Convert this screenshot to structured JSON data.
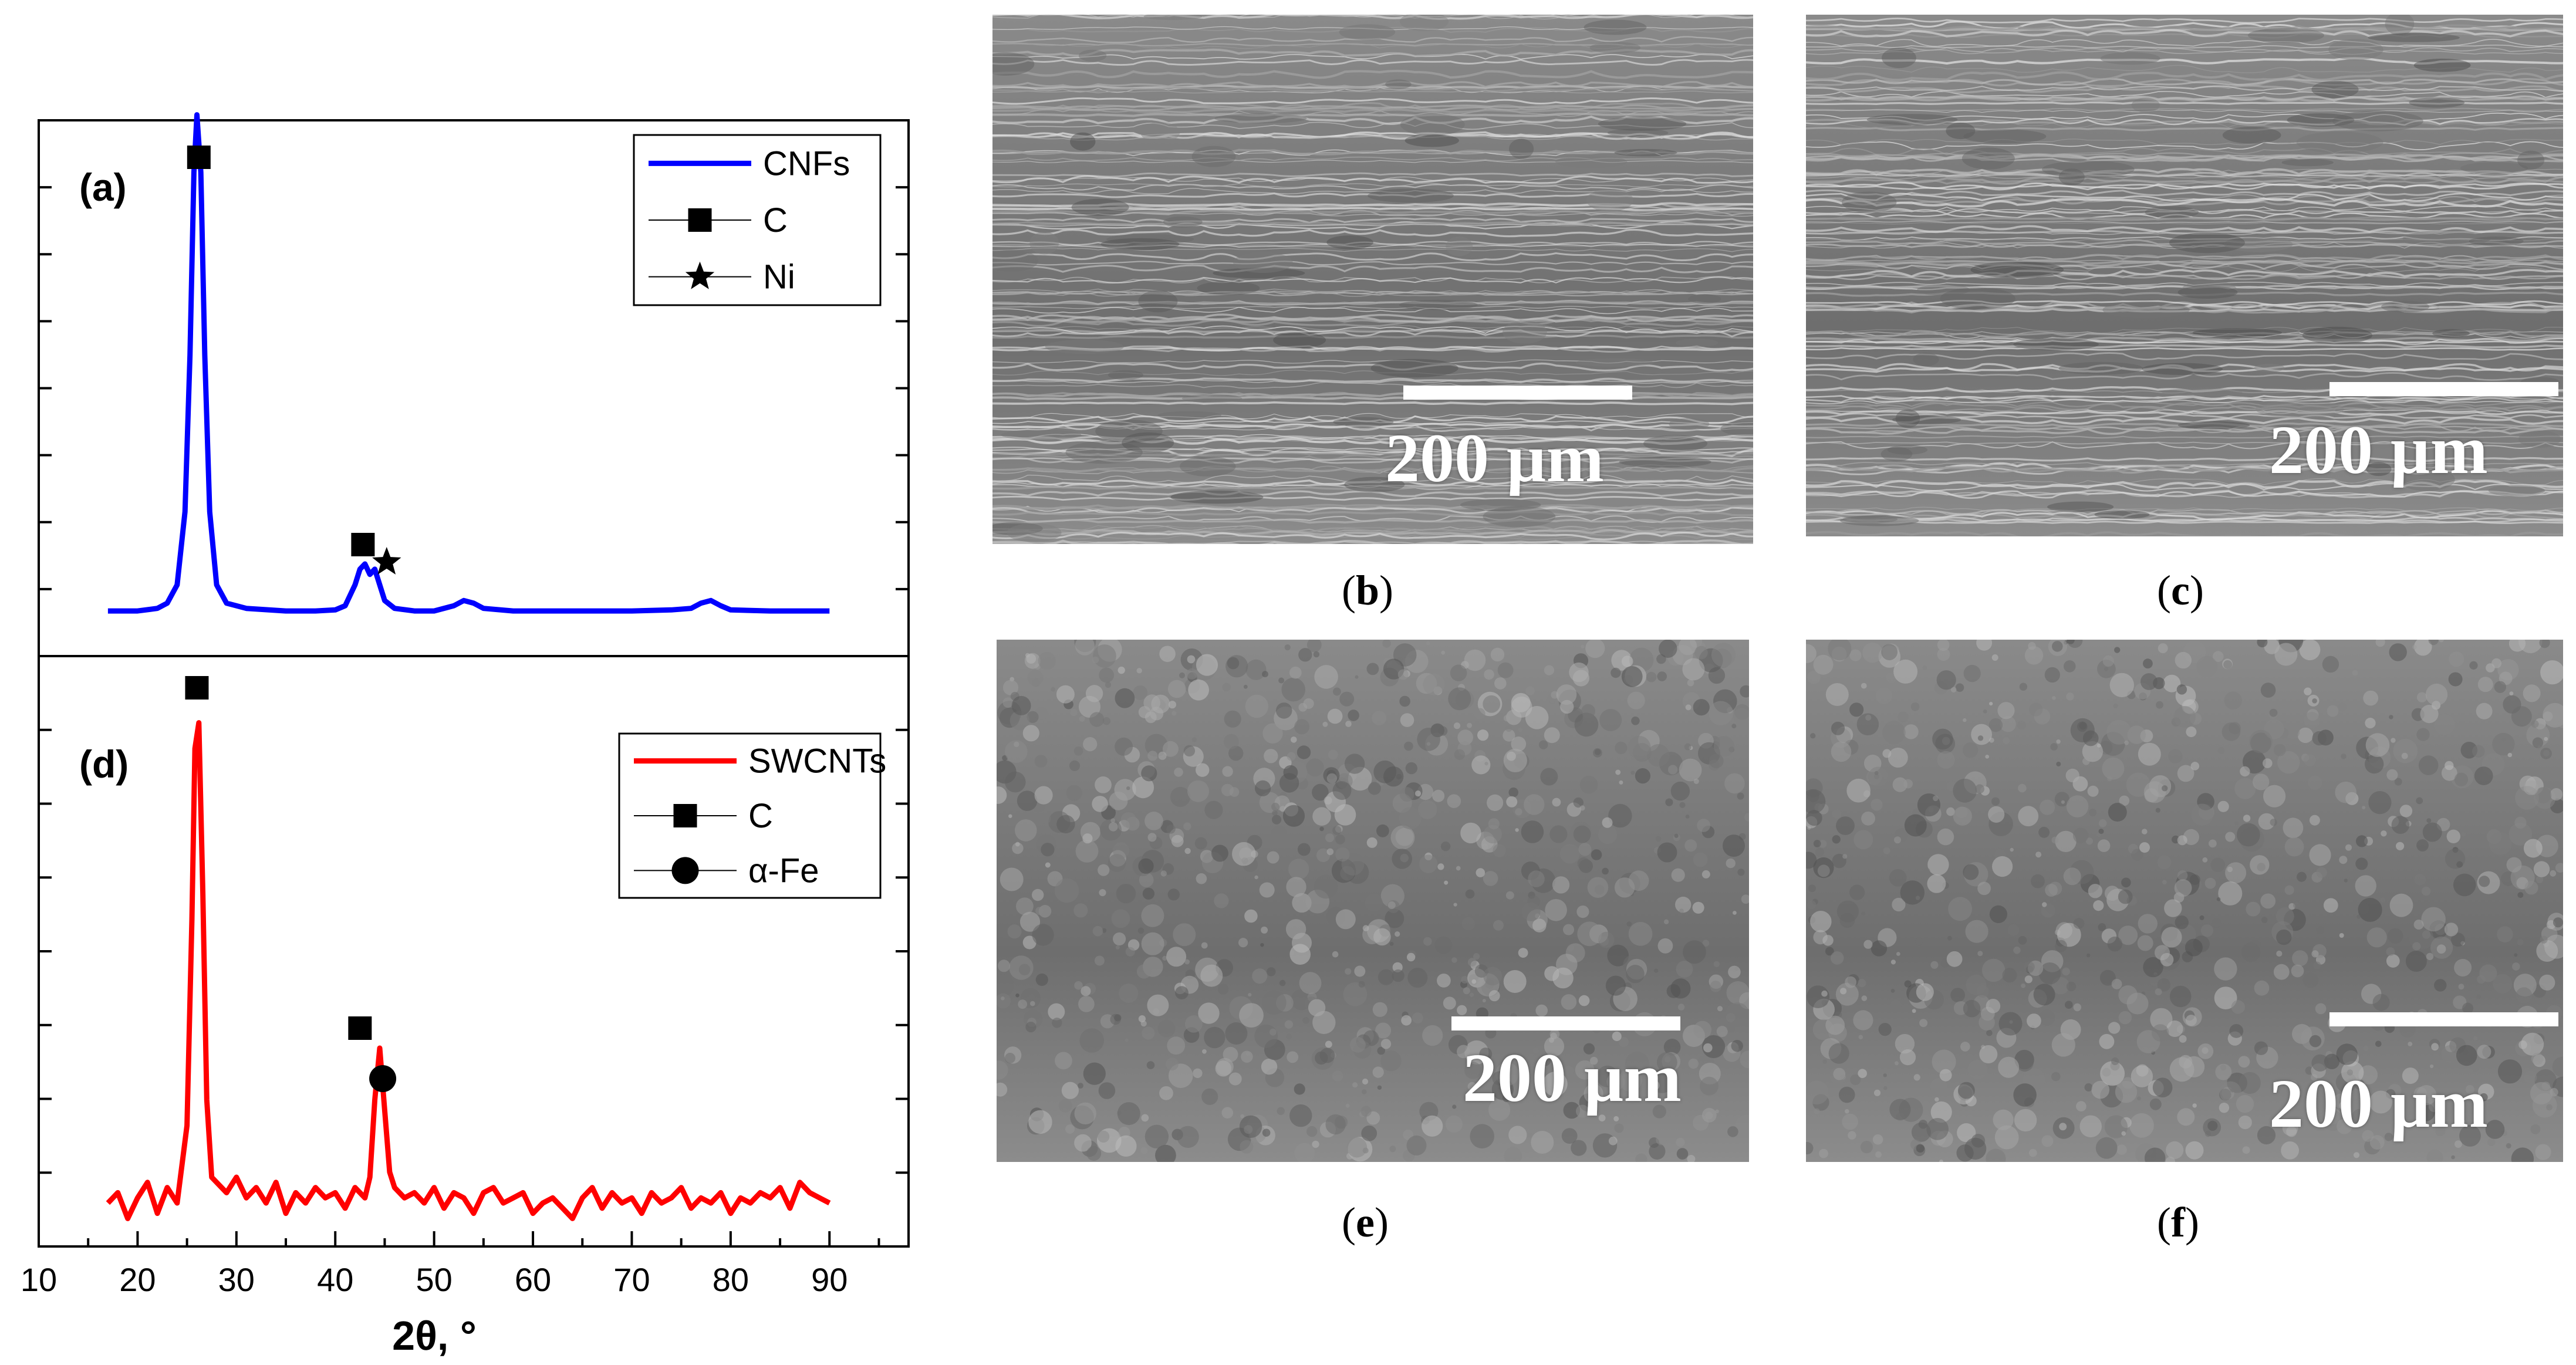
{
  "chart_data": [
    {
      "type": "line",
      "panel": "(a)",
      "xlim": [
        10,
        98
      ],
      "ylim": [
        0,
        1
      ],
      "grid": false,
      "legend_position": "top-right",
      "series": [
        {
          "name": "CNFs",
          "color": "#0000ff",
          "x": [
            17,
            20,
            22,
            23,
            24,
            24.8,
            25.3,
            25.7,
            26,
            26.4,
            26.8,
            27.3,
            28,
            29,
            31,
            35,
            38,
            40,
            41,
            42,
            42.5,
            43,
            43.5,
            44,
            44.5,
            45,
            46,
            48,
            50,
            52,
            53,
            54,
            55,
            58,
            62,
            66,
            70,
            74,
            76,
            77,
            78,
            79,
            80,
            84,
            88,
            90
          ],
          "y": [
            0.01,
            0.01,
            0.015,
            0.025,
            0.06,
            0.2,
            0.5,
            0.85,
            0.96,
            0.85,
            0.5,
            0.2,
            0.06,
            0.025,
            0.015,
            0.01,
            0.01,
            0.012,
            0.02,
            0.06,
            0.09,
            0.1,
            0.08,
            0.09,
            0.06,
            0.03,
            0.015,
            0.01,
            0.01,
            0.02,
            0.03,
            0.025,
            0.015,
            0.01,
            0.01,
            0.01,
            0.01,
            0.012,
            0.015,
            0.025,
            0.03,
            0.02,
            0.012,
            0.01,
            0.01,
            0.01
          ]
        }
      ],
      "legend": [
        {
          "label": "CNFs",
          "marker": "line"
        },
        {
          "label": "C",
          "marker": "square"
        },
        {
          "label": "Ni",
          "marker": "star"
        }
      ],
      "peak_markers": [
        {
          "marker": "square",
          "x": 26.2
        },
        {
          "marker": "square",
          "x": 42.8
        },
        {
          "marker": "star",
          "x": 45.2
        }
      ]
    },
    {
      "type": "line",
      "panel": "(d)",
      "xlim": [
        10,
        98
      ],
      "ylim": [
        0,
        1
      ],
      "grid": false,
      "legend_position": "top-right",
      "series": [
        {
          "name": "SWCNTs",
          "color": "#ff0000",
          "x": [
            17,
            18,
            19,
            20,
            21,
            22,
            23,
            24,
            25,
            25.5,
            25.8,
            26.2,
            26.6,
            27,
            27.5,
            28,
            29,
            30,
            31,
            32,
            33,
            34,
            35,
            36,
            37,
            38,
            39,
            40,
            41,
            42,
            43,
            43.5,
            44,
            44.5,
            45,
            45.5,
            46,
            47,
            48,
            49,
            50,
            51,
            52,
            53,
            54,
            55,
            56,
            57,
            58,
            59,
            60,
            61,
            62,
            63,
            64,
            65,
            66,
            67,
            68,
            69,
            70,
            71,
            72,
            73,
            74,
            75,
            76,
            77,
            78,
            79,
            80,
            81,
            82,
            83,
            84,
            85,
            86,
            87,
            88,
            89,
            90
          ],
          "y": [
            0.0,
            0.02,
            -0.03,
            0.01,
            0.04,
            -0.02,
            0.03,
            0.0,
            0.15,
            0.55,
            0.88,
            0.93,
            0.6,
            0.2,
            0.05,
            0.04,
            0.02,
            0.05,
            0.01,
            0.03,
            0.0,
            0.04,
            -0.02,
            0.02,
            0.0,
            0.03,
            0.01,
            0.02,
            -0.01,
            0.03,
            0.01,
            0.05,
            0.2,
            0.3,
            0.18,
            0.06,
            0.03,
            0.01,
            0.02,
            0.0,
            0.03,
            -0.01,
            0.02,
            0.01,
            -0.02,
            0.02,
            0.03,
            0.0,
            0.01,
            0.02,
            -0.02,
            0.0,
            0.01,
            -0.01,
            -0.03,
            0.01,
            0.03,
            -0.01,
            0.02,
            0.0,
            0.01,
            -0.02,
            0.02,
            0.0,
            0.01,
            0.03,
            -0.01,
            0.01,
            0.0,
            0.02,
            -0.02,
            0.01,
            0.0,
            0.02,
            0.01,
            0.03,
            -0.01,
            0.04,
            0.02,
            0.01,
            0.0
          ]
        }
      ],
      "legend": [
        {
          "label": "SWCNTs",
          "marker": "line"
        },
        {
          "label": "C",
          "marker": "square"
        },
        {
          "label": "α-Fe",
          "marker": "circle"
        }
      ],
      "peak_markers": [
        {
          "marker": "square",
          "x": 26.0
        },
        {
          "marker": "square",
          "x": 42.5
        },
        {
          "marker": "circle",
          "x": 44.8
        }
      ]
    }
  ],
  "xaxis": {
    "ticks": [
      10,
      20,
      30,
      40,
      50,
      60,
      70,
      80,
      90
    ],
    "label": "2θ, °"
  },
  "sem_panels": [
    {
      "id": "b",
      "caption": "b",
      "scale_label": "200 µm"
    },
    {
      "id": "c",
      "caption": "c",
      "scale_label": "200 µm"
    },
    {
      "id": "e",
      "caption": "e",
      "scale_label": "200 µm"
    },
    {
      "id": "f",
      "caption": "f",
      "scale_label": "200 µm"
    }
  ]
}
